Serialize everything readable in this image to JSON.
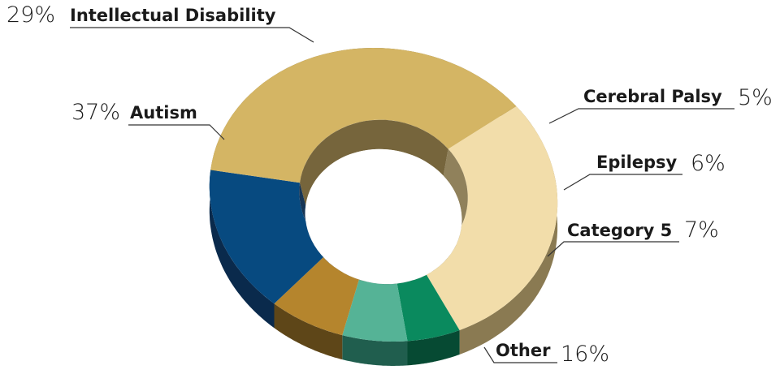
{
  "chart_data": {
    "type": "pie",
    "variant": "3d-donut",
    "title": "",
    "legend": "none",
    "slices": [
      {
        "name": "Intellectual Disability",
        "value": 29,
        "label": "29%",
        "color": "#F2DDAA",
        "side": "#8A7A52"
      },
      {
        "name": "Cerebral Palsy",
        "value": 5,
        "label": "5%",
        "color": "#0A8A5E",
        "side": "#064A33"
      },
      {
        "name": "Epilepsy",
        "value": 6,
        "label": "6%",
        "color": "#55B396",
        "side": "#205E4E"
      },
      {
        "name": "Category 5",
        "value": 7,
        "label": "7%",
        "color": "#B5852D",
        "side": "#5E4618"
      },
      {
        "name": "Other",
        "value": 16,
        "label": "16%",
        "color": "#074A80",
        "side": "#0A2A4C"
      },
      {
        "name": "Autism",
        "value": 37,
        "label": "37%",
        "color": "#D4B564",
        "side": "#6F5D32"
      }
    ]
  }
}
